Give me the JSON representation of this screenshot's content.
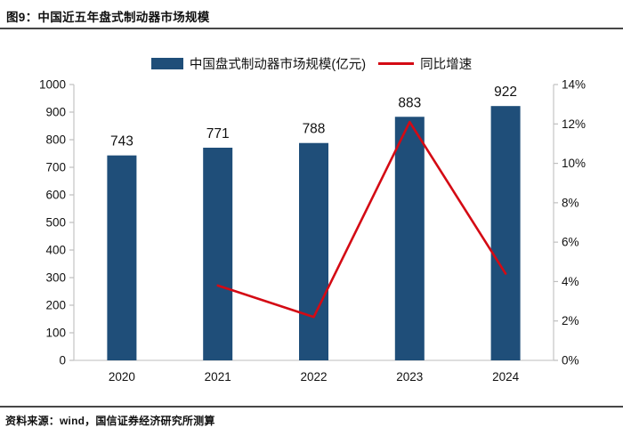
{
  "title": "图9：中国近五年盘式制动器市场规模",
  "source": "资料来源：wind，国信证券经济研究所测算",
  "colors": {
    "bar": "#1F4E79",
    "line": "#D40A14",
    "axis": "#C9C9C9",
    "tick": "#BFBFBF",
    "text": "#111111",
    "rule": "#474747"
  },
  "chart_data": {
    "type": "bar",
    "subtype": "bar+line combo",
    "categories": [
      "2020",
      "2021",
      "2022",
      "2023",
      "2024"
    ],
    "series": [
      {
        "name": "中国盘式制动器市场规模(亿元)",
        "type": "bar",
        "axis": "left",
        "values": [
          743,
          771,
          788,
          883,
          922
        ],
        "data_labels": [
          "743",
          "771",
          "788",
          "883",
          "922"
        ]
      },
      {
        "name": "同比增速",
        "type": "line",
        "axis": "right",
        "values": [
          null,
          3.8,
          2.2,
          12.1,
          4.4
        ]
      }
    ],
    "left_axis": {
      "min": 0,
      "max": 1000,
      "step": 100,
      "tick_labels": [
        "0",
        "100",
        "200",
        "300",
        "400",
        "500",
        "600",
        "700",
        "800",
        "900",
        "1000"
      ]
    },
    "right_axis": {
      "min": 0,
      "max": 14,
      "step": 2,
      "suffix": "%",
      "tick_labels": [
        "0%",
        "2%",
        "4%",
        "6%",
        "8%",
        "10%",
        "12%",
        "14%"
      ]
    },
    "legend_position": "top-center",
    "gridlines": false,
    "plot_background": "#ffffff"
  }
}
